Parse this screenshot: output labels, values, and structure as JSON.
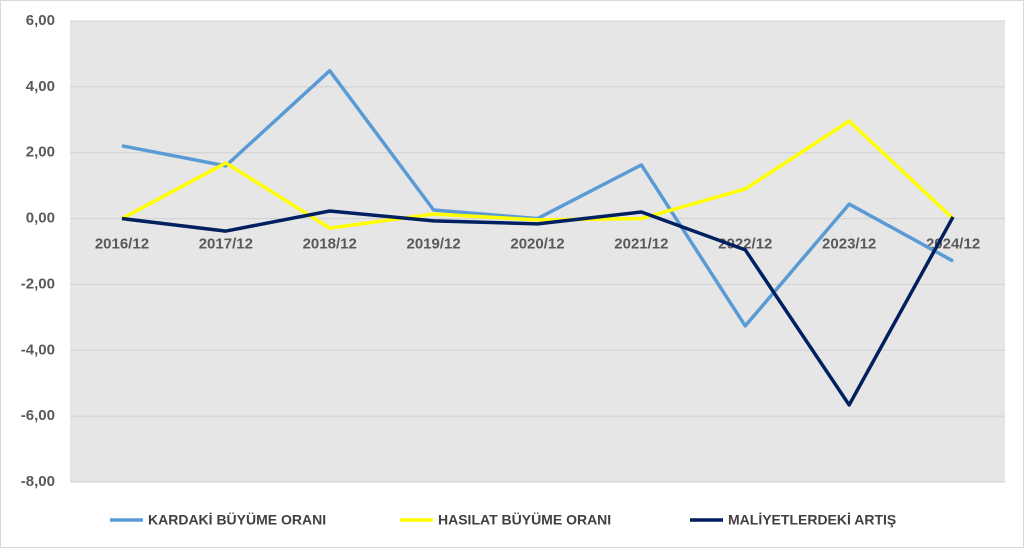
{
  "chart_data": {
    "type": "line",
    "categories": [
      "2016/12",
      "2017/12",
      "2018/12",
      "2019/12",
      "2020/12",
      "2021/12",
      "2022/12",
      "2023/12",
      "2024/12"
    ],
    "series": [
      {
        "name": "KARDAKİ BÜYÜME ORANI",
        "color": "#5b9bd5",
        "values": [
          2.21,
          1.6,
          4.49,
          0.26,
          0,
          1.63,
          -3.26,
          0.44,
          -1.29
        ]
      },
      {
        "name": "HASILAT BÜYÜME ORANI",
        "color": "#ffff00",
        "values": [
          0,
          1.69,
          -0.29,
          0.14,
          -0.04,
          0,
          0.9,
          2.96,
          0
        ]
      },
      {
        "name": "MALİYETLERDEKİ ARTIŞ",
        "color": "#002060",
        "values": [
          0,
          -0.38,
          0.23,
          -0.07,
          -0.16,
          0.2,
          -0.95,
          -5.66,
          0.05
        ]
      }
    ],
    "ylim": [
      -8,
      6
    ],
    "yticks": [
      {
        "value": -8,
        "label": "-8,00"
      },
      {
        "value": -6,
        "label": "-6,00"
      },
      {
        "value": -4,
        "label": "-4,00"
      },
      {
        "value": -2,
        "label": "-2,00"
      },
      {
        "value": 0,
        "label": "0,00"
      },
      {
        "value": 2,
        "label": "2,00"
      },
      {
        "value": 4,
        "label": "4,00"
      },
      {
        "value": 6,
        "label": "6,00"
      }
    ],
    "grid": true,
    "legend": "bottom"
  }
}
